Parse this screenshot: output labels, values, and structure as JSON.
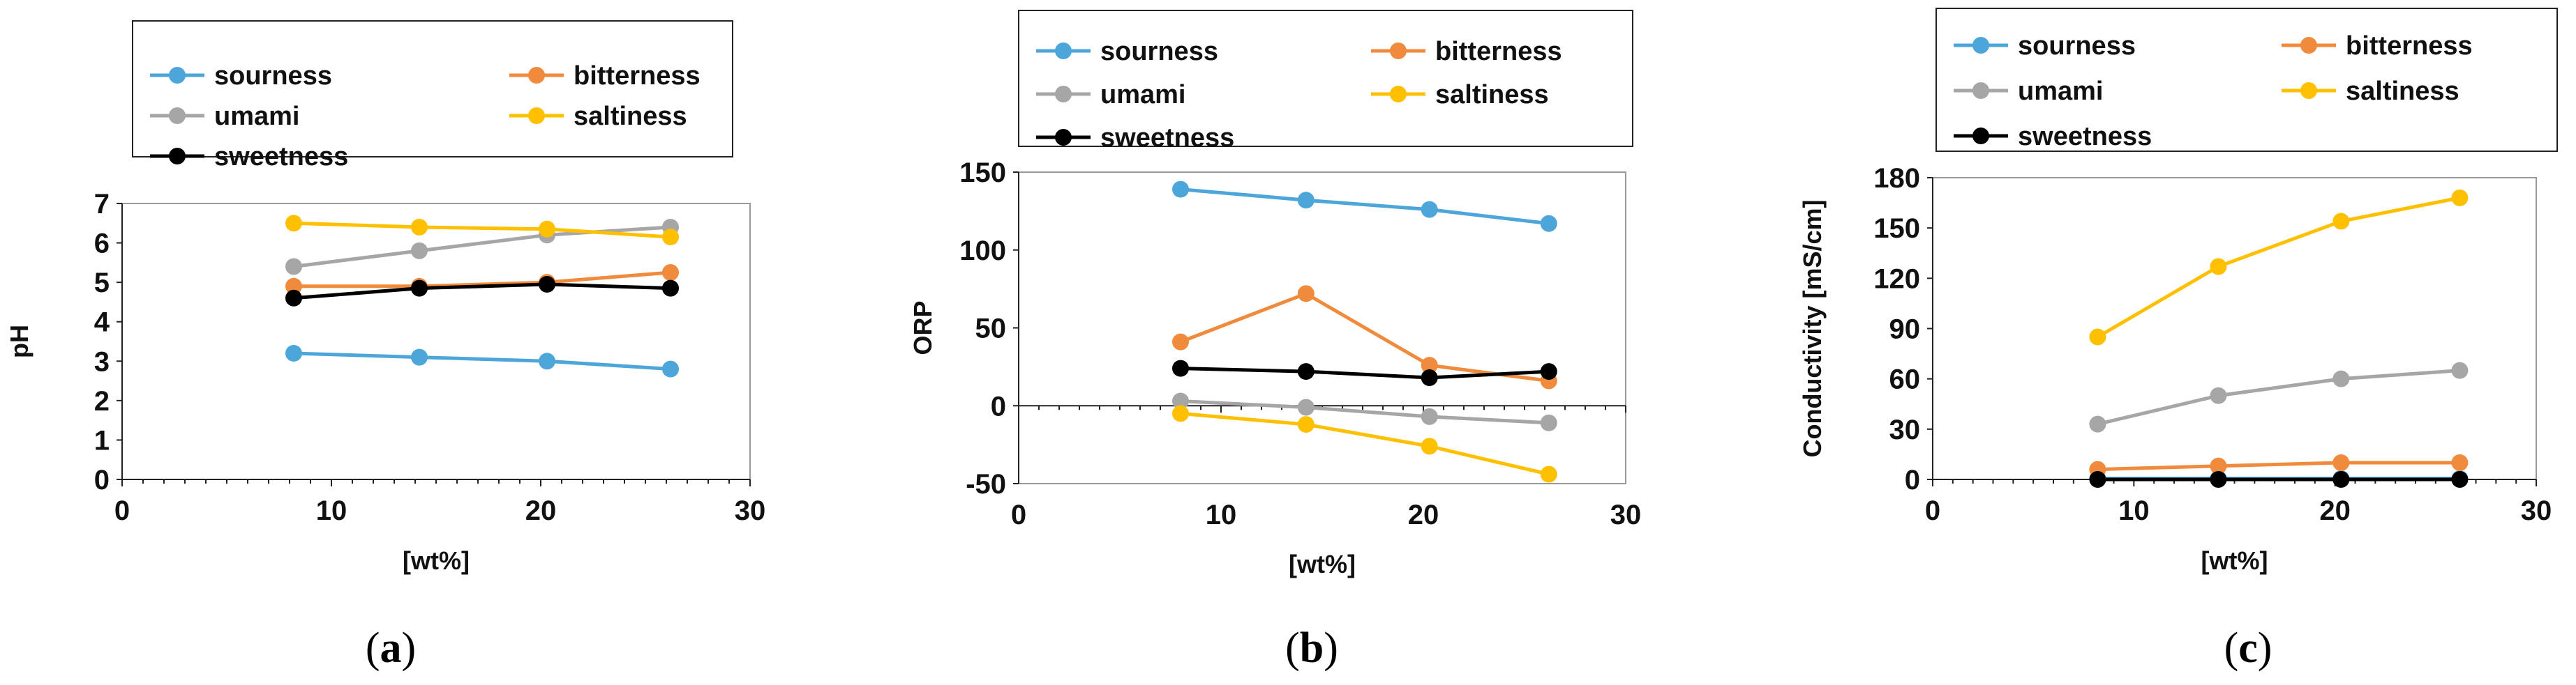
{
  "series_colors": {
    "sourness": "#4da6d9",
    "bitterness": "#f08a3c",
    "umami": "#a6a6a6",
    "saltiness": "#fec000",
    "sweetness": "#000000"
  },
  "chart_data": [
    {
      "type": "line",
      "panel_label": {
        "open": "(",
        "letter": "a",
        "close": ")"
      },
      "title": "",
      "xlabel": "[wt%]",
      "ylabel": "pH",
      "xlim": [
        0,
        30
      ],
      "ylim": [
        0,
        7
      ],
      "xticks": [
        0,
        10,
        20,
        30
      ],
      "yticks": [
        0,
        1,
        2,
        3,
        4,
        5,
        6,
        7
      ],
      "legend": [
        "sourness",
        "bitterness",
        "umami",
        "saltiness",
        "sweetness"
      ],
      "series": [
        {
          "name": "sourness",
          "x": [
            8.2,
            14.2,
            20.3,
            26.2
          ],
          "values": [
            3.2,
            3.1,
            3.0,
            2.8
          ]
        },
        {
          "name": "bitterness",
          "x": [
            8.2,
            14.2,
            20.3,
            26.2
          ],
          "values": [
            4.9,
            4.9,
            5.0,
            5.25
          ]
        },
        {
          "name": "umami",
          "x": [
            8.2,
            14.2,
            20.3,
            26.2
          ],
          "values": [
            5.4,
            5.8,
            6.2,
            6.4
          ]
        },
        {
          "name": "saltiness",
          "x": [
            8.2,
            14.2,
            20.3,
            26.2
          ],
          "values": [
            6.5,
            6.4,
            6.35,
            6.15
          ]
        },
        {
          "name": "sweetness",
          "x": [
            8.2,
            14.2,
            20.3,
            26.2
          ],
          "values": [
            4.6,
            4.85,
            4.95,
            4.85
          ]
        }
      ]
    },
    {
      "type": "line",
      "panel_label": {
        "open": "(",
        "letter": "b",
        "close": ")"
      },
      "title": "",
      "xlabel": "[wt%]",
      "ylabel": "ORP",
      "xlim": [
        0,
        30
      ],
      "ylim": [
        -50,
        150
      ],
      "xticks": [
        0,
        10,
        20,
        30
      ],
      "yticks": [
        -50,
        0,
        50,
        100,
        150
      ],
      "legend": [
        "sourness",
        "bitterness",
        "umami",
        "saltiness",
        "sweetness"
      ],
      "series": [
        {
          "name": "sourness",
          "x": [
            8.0,
            14.2,
            20.3,
            26.2
          ],
          "values": [
            139,
            132,
            126,
            117
          ]
        },
        {
          "name": "bitterness",
          "x": [
            8.0,
            14.2,
            20.3,
            26.2
          ],
          "values": [
            41,
            72,
            26,
            16
          ]
        },
        {
          "name": "umami",
          "x": [
            8.0,
            14.2,
            20.3,
            26.2
          ],
          "values": [
            3,
            -1,
            -7,
            -11
          ]
        },
        {
          "name": "saltiness",
          "x": [
            8.0,
            14.2,
            20.3,
            26.2
          ],
          "values": [
            -5,
            -12,
            -26,
            -44
          ]
        },
        {
          "name": "sweetness",
          "x": [
            8.0,
            14.2,
            20.3,
            26.2
          ],
          "values": [
            24,
            22,
            18,
            22
          ]
        }
      ]
    },
    {
      "type": "line",
      "panel_label": {
        "open": "(",
        "letter": "c",
        "close": ")"
      },
      "title": "",
      "xlabel": "[wt%]",
      "ylabel": "Conductivity  [mS/cm]",
      "xlim": [
        0,
        30
      ],
      "ylim": [
        0,
        180
      ],
      "xticks": [
        0,
        10,
        20,
        30
      ],
      "yticks": [
        0,
        30,
        60,
        90,
        120,
        150,
        180
      ],
      "legend": [
        "sourness",
        "bitterness",
        "umami",
        "saltiness",
        "sweetness"
      ],
      "series": [
        {
          "name": "sourness",
          "x": [
            8.2,
            14.2,
            20.3,
            26.2
          ],
          "values": [
            0.5,
            0.5,
            0.5,
            0.5
          ]
        },
        {
          "name": "bitterness",
          "x": [
            8.2,
            14.2,
            20.3,
            26.2
          ],
          "values": [
            6,
            8,
            10,
            10
          ]
        },
        {
          "name": "umami",
          "x": [
            8.2,
            14.2,
            20.3,
            26.2
          ],
          "values": [
            33,
            50,
            60,
            65
          ]
        },
        {
          "name": "saltiness",
          "x": [
            8.2,
            14.2,
            20.3,
            26.2
          ],
          "values": [
            85,
            127,
            154,
            168
          ]
        },
        {
          "name": "sweetness",
          "x": [
            8.2,
            14.2,
            20.3,
            26.2
          ],
          "values": [
            0,
            0,
            0,
            0
          ]
        }
      ]
    }
  ]
}
